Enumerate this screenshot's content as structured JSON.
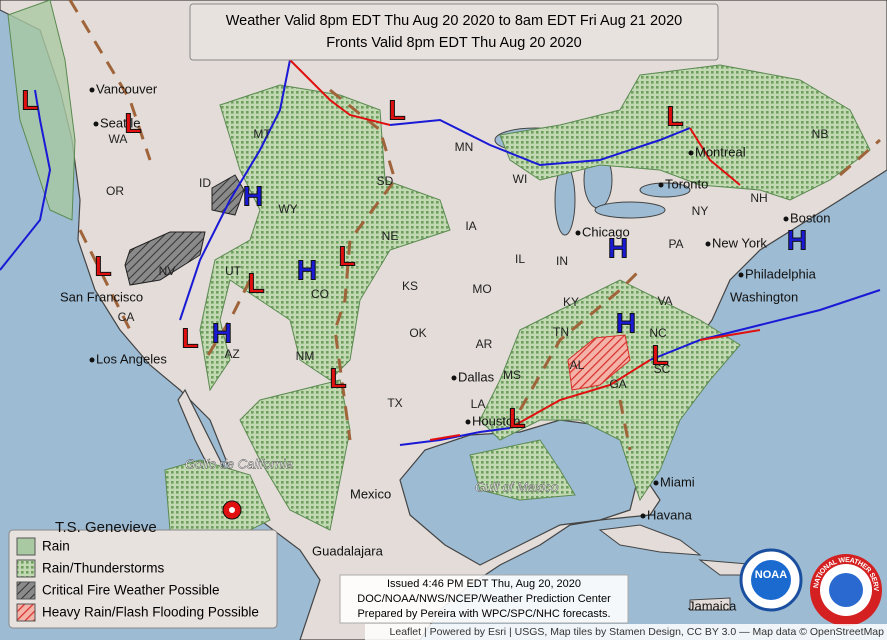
{
  "title": {
    "line1": "Weather Valid 8pm EDT Thu Aug 20 2020 to 8am EDT Fri Aug 21 2020",
    "line2": "Fronts Valid 8pm EDT Thu Aug 20 2020"
  },
  "legend": [
    "Rain",
    "Rain/Thunderstorms",
    "Critical Fire Weather Possible",
    "Heavy Rain/Flash Flooding Possible"
  ],
  "issued": [
    "Issued 4:46 PM EDT Thu, Aug 20, 2020",
    "DOC/NOAA/NWS/NCEP/Weather Prediction Center",
    "Prepared by Pereira with WPC/SPC/NHC forecasts."
  ],
  "attribution": "Leaflet | Powered by Esri | USGS, Map tiles by Stamen Design, CC BY 3.0 — Map data © OpenStreetMap",
  "cities": [
    "Vancouver",
    "Seattle",
    "San Francisco",
    "Los Angeles",
    "Dallas",
    "Houston",
    "Chicago",
    "Toronto",
    "Montreal",
    "Boston",
    "New York",
    "Philadelphia",
    "Washington",
    "Miami",
    "Havana",
    "Mexico",
    "Guadalajara",
    "Jamaica"
  ],
  "water_labels": [
    "Gulf of Mexico",
    "Golfo de California"
  ],
  "storm_label": "T.S. Genevieve",
  "states": [
    "WA",
    "OR",
    "ID",
    "MT",
    "WY",
    "NV",
    "CA",
    "UT",
    "CO",
    "AZ",
    "NM",
    "SD",
    "NE",
    "KS",
    "OK",
    "TX",
    "MN",
    "IA",
    "MO",
    "AR",
    "LA",
    "MS",
    "IL",
    "IN",
    "KY",
    "TN",
    "AL",
    "GA",
    "NC",
    "SC",
    "VA",
    "PA",
    "NY",
    "NH",
    "NB",
    "WI"
  ],
  "pressure_centers": [
    "L",
    "L",
    "H",
    "L",
    "H",
    "L",
    "L",
    "H",
    "L",
    "L",
    "L",
    "L",
    "H",
    "H",
    "H",
    "L",
    "L"
  ],
  "logos": [
    "NOAA",
    "NATIONAL WEATHER SERVICE"
  ]
}
